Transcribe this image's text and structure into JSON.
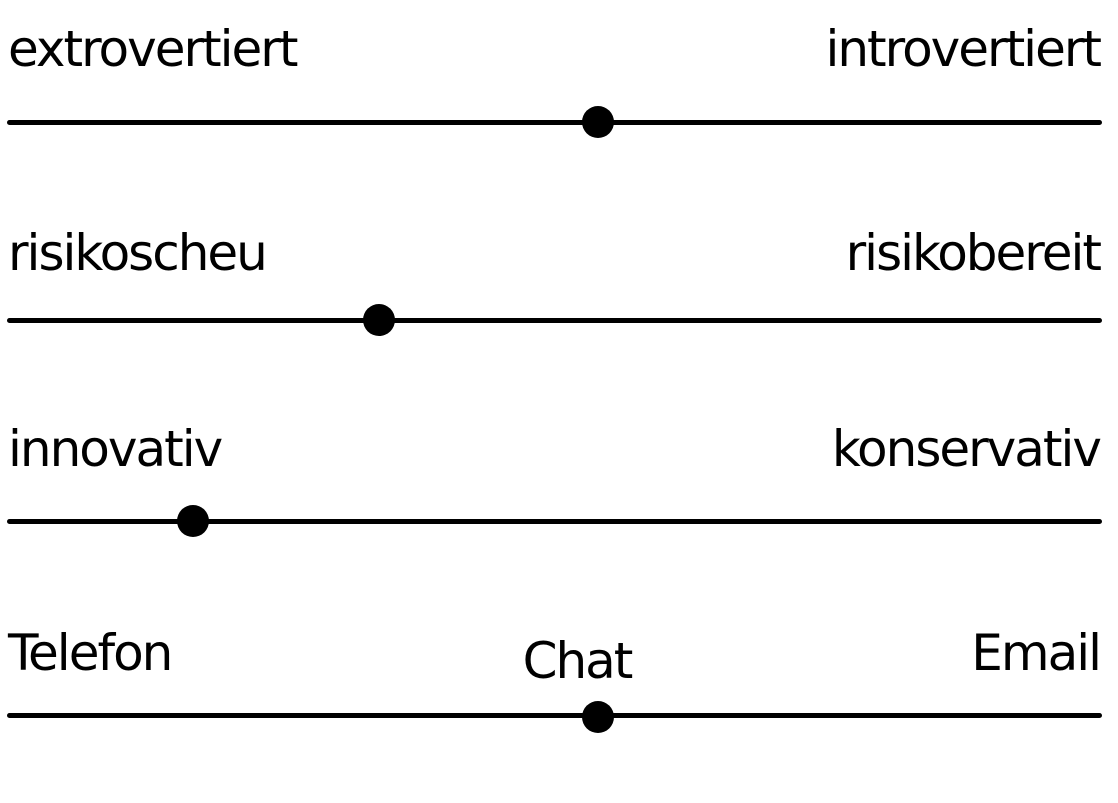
{
  "scales": [
    {
      "left_label": "extrovertiert",
      "right_label": "introvertiert",
      "value": 0.54
    },
    {
      "left_label": "risikoscheu",
      "right_label": "risikobereit",
      "value": 0.34
    },
    {
      "left_label": "innovativ",
      "right_label": "konservativ",
      "value": 0.17
    },
    {
      "left_label": "Telefon",
      "middle_label": "Chat",
      "right_label": "Email",
      "value": 0.54
    }
  ]
}
